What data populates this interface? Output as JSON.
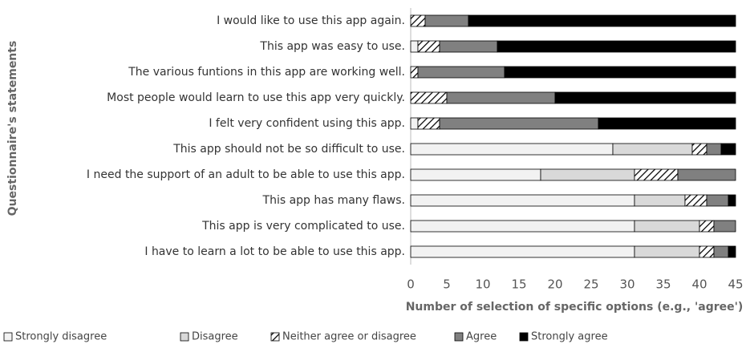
{
  "chart_data": {
    "type": "stacked-bar-horizontal",
    "x_label": "Number of selection of specific options (e.g., 'agree')",
    "y_label": "Questionnaire's statements",
    "categories": [
      "I would like to use this app again.",
      "This app was easy to use.",
      "The various funtions in this app are working well.",
      "Most people would learn to use this app very quickly.",
      "I felt very confident using this app.",
      "This app should not be so difficult to use.",
      "I need the support of an adult to be able to use this app.",
      "This app has many flaws.",
      "This app is very complicated to use.",
      "I have to learn a lot to be able to use this app."
    ],
    "series": [
      {
        "name": "Strongly disagree",
        "color": "#f2f2f2",
        "values": [
          0,
          1,
          0,
          0,
          1,
          28,
          18,
          31,
          31,
          31
        ]
      },
      {
        "name": "Disagree",
        "color": "#d9d9d9",
        "values": [
          0,
          0,
          0,
          0,
          0,
          11,
          13,
          7,
          9,
          9
        ]
      },
      {
        "name": "Neither agree or disagree",
        "color": "#ffffff",
        "pattern": "hatch",
        "values": [
          2,
          3,
          1,
          5,
          3,
          2,
          6,
          3,
          2,
          2
        ]
      },
      {
        "name": "Agree",
        "color": "#808080",
        "values": [
          6,
          8,
          12,
          15,
          22,
          2,
          8,
          3,
          3,
          2
        ]
      },
      {
        "name": "Strongly agree",
        "color": "#000000",
        "values": [
          37,
          33,
          32,
          25,
          19,
          2,
          0,
          1,
          0,
          1
        ]
      }
    ],
    "xlim": [
      0,
      45
    ],
    "xticks": [
      0,
      5,
      10,
      15,
      20,
      25,
      30,
      35,
      40,
      45
    ],
    "legend": "bottom"
  }
}
